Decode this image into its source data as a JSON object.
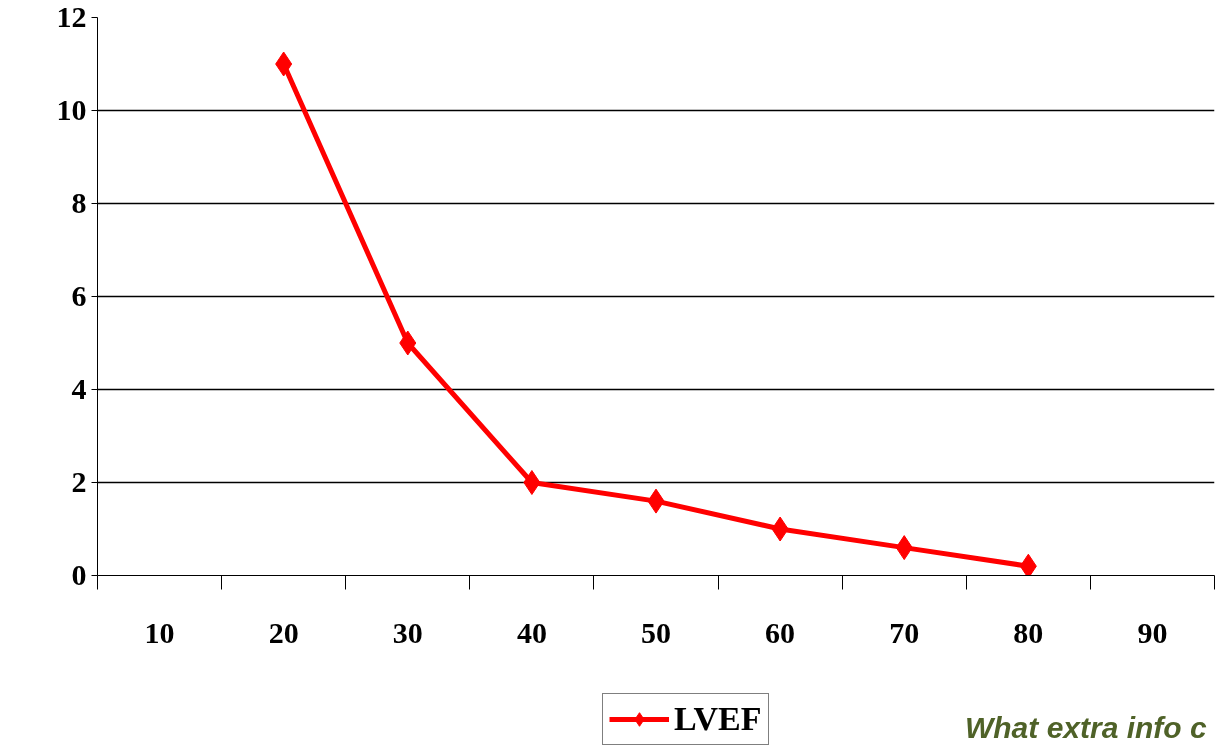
{
  "chart_data": {
    "type": "line",
    "categories": [
      "10",
      "20",
      "30",
      "40",
      "50",
      "60",
      "70",
      "80",
      "90"
    ],
    "series": [
      {
        "name": "LVEF",
        "color": "#ff0000",
        "values": [
          null,
          11,
          5,
          2,
          1.6,
          1,
          0.6,
          0.2,
          null
        ]
      }
    ],
    "ylim": [
      0,
      12
    ],
    "yticks": [
      0,
      2,
      4,
      6,
      8,
      10,
      12
    ],
    "grid": "y",
    "legend": "bottom",
    "marker": "diamond",
    "line_style": "solid",
    "annotations": [
      "What extra info c"
    ]
  }
}
